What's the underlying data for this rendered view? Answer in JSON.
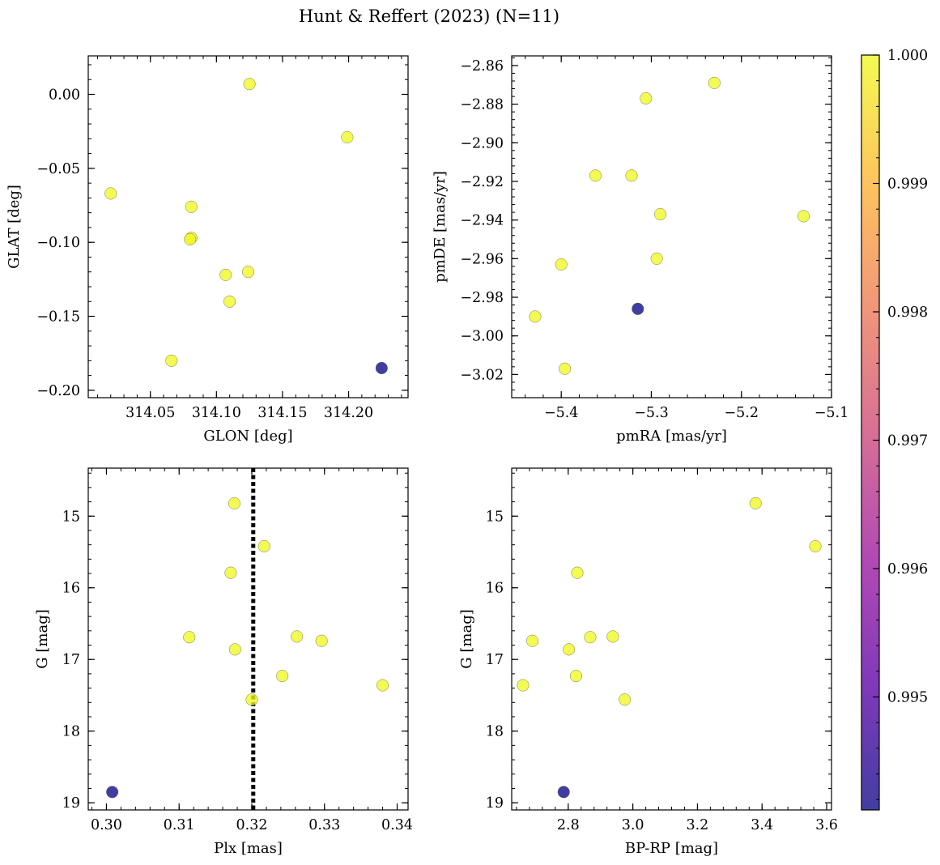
{
  "title": "Hunt & Reffert (2023) (N=11)",
  "colorbar": {
    "range": [
      0.99412,
      1.0
    ],
    "ticks": [
      0.995,
      0.996,
      0.997,
      0.998,
      0.999,
      1.0
    ],
    "tick_labels": [
      "0.995",
      "0.996",
      "0.997",
      "0.998",
      "0.999",
      "1.000"
    ],
    "colormap": [
      "#0d0887",
      "#5c01a6",
      "#9c179e",
      "#cc4778",
      "#ed7953",
      "#fdb42f",
      "#f0f921"
    ]
  },
  "chart_data": [
    {
      "type": "scatter",
      "name": "glon-glat",
      "xlabel": "GLON [deg]",
      "ylabel": "GLAT [deg]",
      "xlim": [
        314.003,
        314.245
      ],
      "ylim": [
        -0.205,
        0.026
      ],
      "x_ticks": [
        314.05,
        314.1,
        314.15,
        314.2
      ],
      "x_tick_labels": [
        "314.05",
        "314.10",
        "314.15",
        "314.20"
      ],
      "y_ticks": [
        0.0,
        -0.05,
        -0.1,
        -0.15,
        -0.2
      ],
      "y_tick_labels": [
        "0.00",
        "−0.05",
        "−0.10",
        "−0.15",
        "−0.20"
      ],
      "points": [
        {
          "x": 314.125,
          "y": 0.007,
          "c": 1.0
        },
        {
          "x": 314.199,
          "y": -0.029,
          "c": 1.0
        },
        {
          "x": 314.02,
          "y": -0.067,
          "c": 1.0
        },
        {
          "x": 314.081,
          "y": -0.076,
          "c": 1.0
        },
        {
          "x": 314.081,
          "y": -0.097,
          "c": 1.0
        },
        {
          "x": 314.08,
          "y": -0.098,
          "c": 1.0
        },
        {
          "x": 314.107,
          "y": -0.122,
          "c": 1.0
        },
        {
          "x": 314.124,
          "y": -0.12,
          "c": 1.0
        },
        {
          "x": 314.11,
          "y": -0.14,
          "c": 1.0
        },
        {
          "x": 314.066,
          "y": -0.18,
          "c": 1.0
        },
        {
          "x": 314.225,
          "y": -0.185,
          "c": 0.99412
        }
      ]
    },
    {
      "type": "scatter",
      "name": "pm",
      "xlabel": "pmRA [mas/yr]",
      "ylabel": "pmDE [mas/yr]",
      "xlim": [
        -5.455,
        -5.1
      ],
      "ylim": [
        -3.032,
        -2.855
      ],
      "x_ticks": [
        -5.4,
        -5.3,
        -5.2,
        -5.1
      ],
      "x_tick_labels": [
        "−5.4",
        "−5.3",
        "−5.2",
        "−5.1"
      ],
      "y_ticks": [
        -2.86,
        -2.88,
        -2.9,
        -2.92,
        -2.94,
        -2.96,
        -2.98,
        -3.0,
        -3.02
      ],
      "y_tick_labels": [
        "−2.86",
        "−2.88",
        "−2.90",
        "−2.92",
        "−2.94",
        "−2.96",
        "−2.98",
        "−3.00",
        "−3.02"
      ],
      "points": [
        {
          "x": -5.23,
          "y": -2.869,
          "c": 1.0
        },
        {
          "x": -5.306,
          "y": -2.877,
          "c": 1.0
        },
        {
          "x": -5.362,
          "y": -2.917,
          "c": 1.0
        },
        {
          "x": -5.322,
          "y": -2.917,
          "c": 1.0
        },
        {
          "x": -5.29,
          "y": -2.937,
          "c": 1.0
        },
        {
          "x": -5.131,
          "y": -2.938,
          "c": 1.0
        },
        {
          "x": -5.4,
          "y": -2.963,
          "c": 1.0
        },
        {
          "x": -5.294,
          "y": -2.96,
          "c": 1.0
        },
        {
          "x": -5.429,
          "y": -2.99,
          "c": 1.0
        },
        {
          "x": -5.396,
          "y": -3.017,
          "c": 1.0
        },
        {
          "x": -5.315,
          "y": -2.986,
          "c": 0.99412
        }
      ]
    },
    {
      "type": "scatter",
      "name": "plx-g",
      "xlabel": "Plx [mas]",
      "ylabel": "G [mag]",
      "xlim": [
        0.2975,
        0.3415
      ],
      "ylim": [
        19.1,
        14.33
      ],
      "x_ticks": [
        0.3,
        0.31,
        0.32,
        0.33,
        0.34
      ],
      "x_tick_labels": [
        "0.30",
        "0.31",
        "0.32",
        "0.33",
        "0.34"
      ],
      "y_ticks": [
        15,
        16,
        17,
        18,
        19
      ],
      "y_tick_labels": [
        "15",
        "16",
        "17",
        "18",
        "19"
      ],
      "vline": 0.3202,
      "points": [
        {
          "x": 0.3176,
          "y": 14.82,
          "c": 1.0
        },
        {
          "x": 0.3217,
          "y": 15.42,
          "c": 1.0
        },
        {
          "x": 0.3171,
          "y": 15.79,
          "c": 1.0
        },
        {
          "x": 0.3114,
          "y": 16.69,
          "c": 1.0
        },
        {
          "x": 0.3262,
          "y": 16.68,
          "c": 1.0
        },
        {
          "x": 0.3296,
          "y": 16.74,
          "c": 1.0
        },
        {
          "x": 0.3177,
          "y": 16.86,
          "c": 1.0
        },
        {
          "x": 0.3242,
          "y": 17.23,
          "c": 1.0
        },
        {
          "x": 0.338,
          "y": 17.36,
          "c": 1.0
        },
        {
          "x": 0.32,
          "y": 17.56,
          "c": 1.0
        },
        {
          "x": 0.3008,
          "y": 18.85,
          "c": 0.99412
        }
      ]
    },
    {
      "type": "scatter",
      "name": "cmd",
      "xlabel": "BP-RP [mag]",
      "ylabel": "G [mag]",
      "xlim": [
        2.625,
        3.615
      ],
      "ylim": [
        19.1,
        14.33
      ],
      "x_ticks": [
        2.8,
        3.0,
        3.2,
        3.4,
        3.6
      ],
      "x_tick_labels": [
        "2.8",
        "3.0",
        "3.2",
        "3.4",
        "3.6"
      ],
      "y_ticks": [
        15,
        16,
        17,
        18,
        19
      ],
      "y_tick_labels": [
        "15",
        "16",
        "17",
        "18",
        "19"
      ],
      "points": [
        {
          "x": 3.38,
          "y": 14.82,
          "c": 1.0
        },
        {
          "x": 3.565,
          "y": 15.42,
          "c": 1.0
        },
        {
          "x": 2.828,
          "y": 15.79,
          "c": 1.0
        },
        {
          "x": 2.689,
          "y": 16.74,
          "c": 1.0
        },
        {
          "x": 2.868,
          "y": 16.69,
          "c": 1.0
        },
        {
          "x": 2.938,
          "y": 16.68,
          "c": 1.0
        },
        {
          "x": 2.802,
          "y": 16.86,
          "c": 1.0
        },
        {
          "x": 2.824,
          "y": 17.23,
          "c": 1.0
        },
        {
          "x": 2.66,
          "y": 17.36,
          "c": 1.0
        },
        {
          "x": 2.975,
          "y": 17.56,
          "c": 1.0
        },
        {
          "x": 2.786,
          "y": 18.85,
          "c": 0.99412
        }
      ]
    }
  ]
}
